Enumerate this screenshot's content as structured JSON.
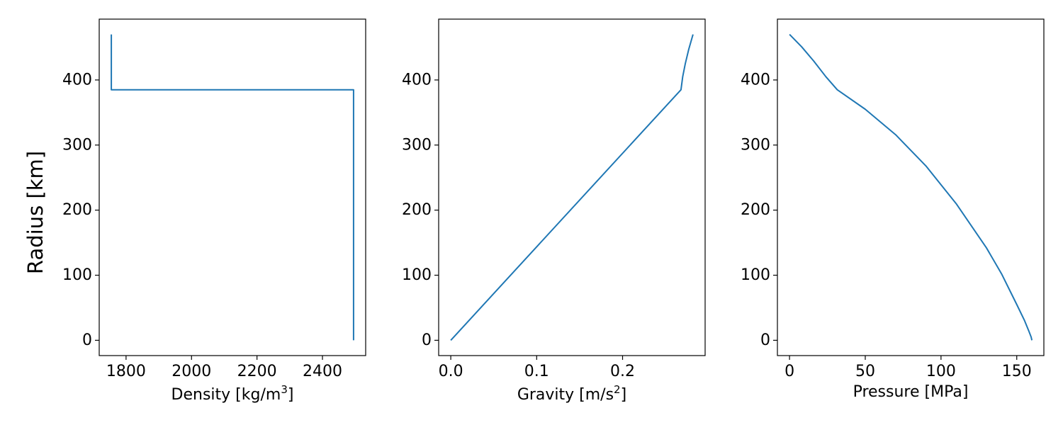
{
  "figure": {
    "ylabel": "Radius [km]",
    "line_color": "#1f77b4"
  },
  "chart_data": [
    {
      "type": "line",
      "xlabel": "Density [kg/m",
      "xlabel_sup": "3",
      "xlabel_suffix": "]",
      "ylabel": "Radius [km]",
      "xlim": [
        1718,
        2532
      ],
      "ylim": [
        -23.5,
        493.5
      ],
      "xticks": [
        1800,
        2000,
        2200,
        2400
      ],
      "xtick_labels": [
        "1800",
        "2000",
        "2200",
        "2400"
      ],
      "yticks": [
        0,
        100,
        200,
        300,
        400
      ],
      "ytick_labels": [
        "0",
        "100",
        "200",
        "300",
        "400"
      ],
      "grid": false,
      "series": [
        {
          "x": [
            2495,
            2495,
            1755,
            1755
          ],
          "y": [
            0,
            385,
            385,
            470
          ]
        }
      ]
    },
    {
      "type": "line",
      "xlabel": "Gravity [m/s",
      "xlabel_sup": "2",
      "xlabel_suffix": "]",
      "ylabel": "Radius [km]",
      "xlim": [
        -0.0141,
        0.2961
      ],
      "ylim": [
        -23.5,
        493.5
      ],
      "xticks": [
        0.0,
        0.1,
        0.2
      ],
      "xtick_labels": [
        "0.0",
        "0.1",
        "0.2"
      ],
      "yticks": [
        0,
        100,
        200,
        300,
        400
      ],
      "ytick_labels": [
        "0",
        "100",
        "200",
        "300",
        "400"
      ],
      "grid": false,
      "series": [
        {
          "x": [
            0.0,
            0.268,
            0.27,
            0.273,
            0.277,
            0.282
          ],
          "y": [
            0,
            385,
            405,
            425,
            447,
            470
          ]
        }
      ]
    },
    {
      "type": "line",
      "xlabel": "Pressure [MPa]",
      "xlabel_sup": "",
      "xlabel_suffix": "",
      "ylabel": "Radius [km]",
      "xlim": [
        -8.0,
        167.9
      ],
      "ylim": [
        -23.5,
        493.5
      ],
      "xticks": [
        0,
        50,
        100,
        150
      ],
      "xtick_labels": [
        "0",
        "50",
        "100",
        "150"
      ],
      "yticks": [
        0,
        100,
        200,
        300,
        400
      ],
      "ytick_labels": [
        "0",
        "100",
        "200",
        "300",
        "400"
      ],
      "grid": false,
      "series": [
        {
          "x": [
            0,
            8,
            16,
            24,
            31.5,
            50,
            70,
            90,
            110,
            130,
            140,
            150,
            155,
            158,
            159.5,
            160
          ],
          "y": [
            470,
            451,
            429,
            405,
            385,
            355,
            316,
            268,
            210,
            142,
            102,
            55,
            31,
            14,
            5,
            0
          ]
        }
      ]
    }
  ]
}
